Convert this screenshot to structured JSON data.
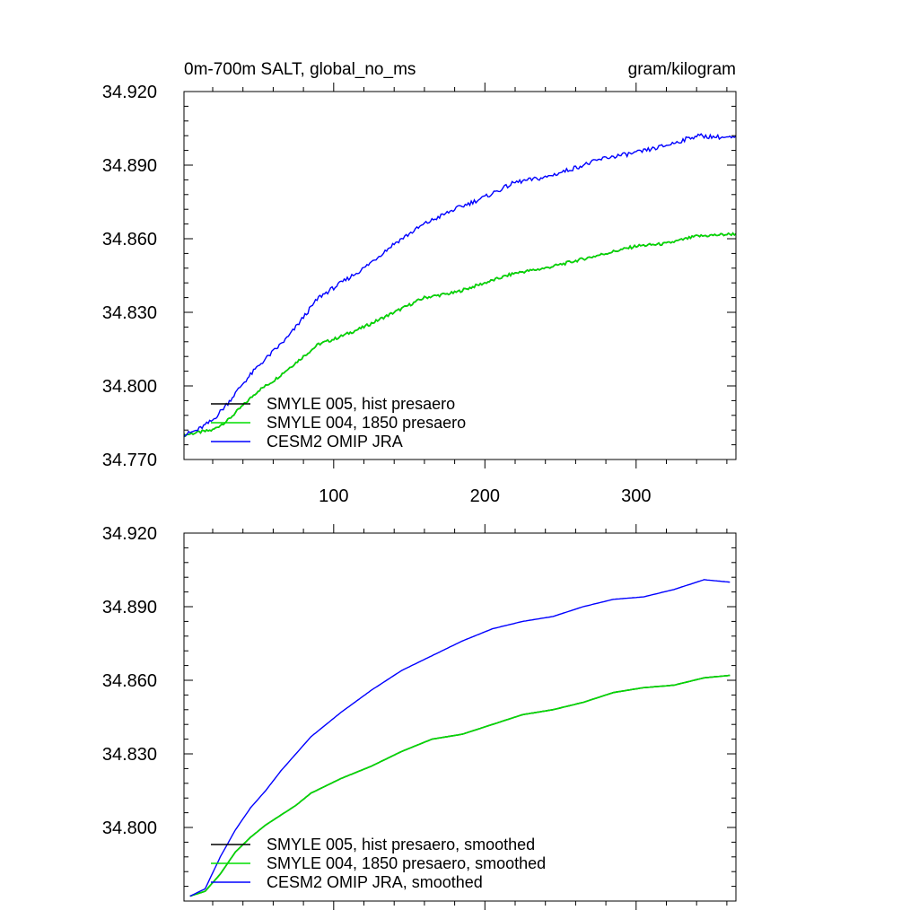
{
  "chart_data": [
    {
      "type": "line",
      "title_left": "0m-700m SALT, global_no_ms",
      "title_right": "gram/kilogram",
      "xlabel": "",
      "ylabel": "",
      "xlim": [
        1,
        366
      ],
      "ylim": [
        34.77,
        34.92
      ],
      "y_ticks": [
        34.77,
        34.8,
        34.83,
        34.86,
        34.89,
        34.92
      ],
      "y_tick_labels": [
        "34.770",
        "34.800",
        "34.830",
        "34.860",
        "34.890",
        "34.920"
      ],
      "x_ticks": [
        100,
        200,
        300
      ],
      "x_tick_labels": [
        "100",
        "200",
        "300"
      ],
      "legend_placement": "bottom-left",
      "series": [
        {
          "name": "SMYLE 005, hist presaero",
          "color": "#000000",
          "x": [
            1,
            10,
            20,
            30,
            40,
            50,
            60,
            70,
            80,
            90,
            100,
            120,
            140,
            160,
            180,
            200,
            220,
            240,
            260,
            280,
            300,
            320,
            340,
            366
          ],
          "values": [
            34.78,
            34.781,
            34.782,
            34.786,
            34.792,
            34.798,
            34.802,
            34.807,
            34.812,
            34.817,
            34.819,
            34.824,
            34.83,
            34.836,
            34.838,
            34.842,
            34.846,
            34.848,
            34.851,
            34.854,
            34.857,
            34.858,
            34.861,
            34.862
          ]
        },
        {
          "name": "SMYLE 004, 1850 presaero",
          "color": "#00dd00",
          "x": [
            1,
            10,
            20,
            30,
            40,
            50,
            60,
            70,
            80,
            90,
            100,
            120,
            140,
            160,
            180,
            200,
            220,
            240,
            260,
            280,
            300,
            320,
            340,
            366
          ],
          "values": [
            34.78,
            34.781,
            34.782,
            34.786,
            34.792,
            34.798,
            34.802,
            34.807,
            34.812,
            34.817,
            34.819,
            34.824,
            34.83,
            34.836,
            34.838,
            34.842,
            34.846,
            34.848,
            34.851,
            34.854,
            34.857,
            34.858,
            34.861,
            34.862
          ]
        },
        {
          "name": "CESM2 OMIP JRA",
          "color": "#0000ff",
          "x": [
            1,
            10,
            20,
            30,
            40,
            50,
            60,
            70,
            80,
            90,
            100,
            120,
            140,
            160,
            180,
            200,
            220,
            240,
            260,
            280,
            300,
            320,
            340,
            366
          ],
          "values": [
            34.78,
            34.782,
            34.786,
            34.793,
            34.801,
            34.808,
            34.814,
            34.82,
            34.828,
            34.836,
            34.84,
            34.848,
            34.858,
            34.866,
            34.872,
            34.877,
            34.883,
            34.885,
            34.889,
            34.893,
            34.895,
            34.898,
            34.902,
            34.901
          ]
        }
      ],
      "noisy": true
    },
    {
      "type": "line",
      "xlabel": "",
      "ylabel": "",
      "xlim": [
        1,
        366
      ],
      "ylim": [
        34.77,
        34.92
      ],
      "y_ticks": [
        34.8,
        34.83,
        34.86,
        34.89,
        34.92
      ],
      "y_tick_labels": [
        "34.800",
        "34.830",
        "34.860",
        "34.890",
        "34.920"
      ],
      "x_ticks": [
        100,
        200,
        300
      ],
      "legend_placement": "bottom-left",
      "series": [
        {
          "name": "SMYLE 005, hist presaero, smoothed",
          "color": "#000000",
          "x": [
            5,
            15,
            25,
            35,
            45,
            55,
            65,
            75,
            85,
            95,
            105,
            125,
            145,
            165,
            185,
            205,
            225,
            245,
            265,
            285,
            305,
            325,
            345,
            362
          ],
          "values": [
            34.772,
            34.774,
            34.781,
            34.79,
            34.796,
            34.801,
            34.805,
            34.809,
            34.814,
            34.817,
            34.82,
            34.825,
            34.831,
            34.836,
            34.838,
            34.842,
            34.846,
            34.848,
            34.851,
            34.855,
            34.857,
            34.858,
            34.861,
            34.862
          ]
        },
        {
          "name": "SMYLE 004, 1850 presaero, smoothed",
          "color": "#00dd00",
          "x": [
            5,
            15,
            25,
            35,
            45,
            55,
            65,
            75,
            85,
            95,
            105,
            125,
            145,
            165,
            185,
            205,
            225,
            245,
            265,
            285,
            305,
            325,
            345,
            362
          ],
          "values": [
            34.772,
            34.774,
            34.781,
            34.79,
            34.796,
            34.801,
            34.805,
            34.809,
            34.814,
            34.817,
            34.82,
            34.825,
            34.831,
            34.836,
            34.838,
            34.842,
            34.846,
            34.848,
            34.851,
            34.855,
            34.857,
            34.858,
            34.861,
            34.862
          ]
        },
        {
          "name": "CESM2 OMIP JRA, smoothed",
          "color": "#0000ff",
          "x": [
            5,
            15,
            25,
            35,
            45,
            55,
            65,
            75,
            85,
            95,
            105,
            125,
            145,
            165,
            185,
            205,
            225,
            245,
            265,
            285,
            305,
            325,
            345,
            362
          ],
          "values": [
            34.772,
            34.775,
            34.788,
            34.799,
            34.808,
            34.815,
            34.823,
            34.83,
            34.837,
            34.842,
            34.847,
            34.856,
            34.864,
            34.87,
            34.876,
            34.881,
            34.884,
            34.886,
            34.89,
            34.893,
            34.894,
            34.897,
            34.901,
            34.9
          ]
        }
      ],
      "noisy": false
    }
  ]
}
